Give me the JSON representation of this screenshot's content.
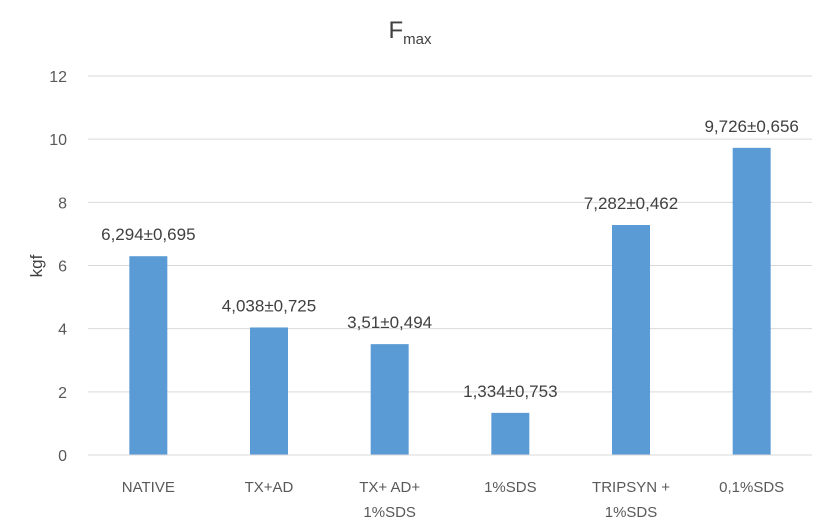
{
  "chart_data": {
    "type": "bar",
    "title_main": "F",
    "title_sub": "max",
    "xlabel": "",
    "ylabel": "kgf",
    "ylim": [
      0,
      12
    ],
    "yticks": [
      0,
      2,
      4,
      6,
      8,
      10,
      12
    ],
    "grid": true,
    "legend": "none",
    "bar_color": "#5b9bd5",
    "categories": [
      [
        "NATIVE"
      ],
      [
        "TX+AD"
      ],
      [
        "TX+ AD+",
        "1%SDS"
      ],
      [
        "1%SDS"
      ],
      [
        "TRIPSYN +",
        "1%SDS"
      ],
      [
        "0,1%SDS"
      ]
    ],
    "values": [
      6.294,
      4.038,
      3.51,
      1.334,
      7.282,
      9.726
    ],
    "data_labels": [
      "6,294±0,695",
      "4,038±0,725",
      "3,51±0,494",
      "1,334±0,753",
      "7,282±0,462",
      "9,726±0,656"
    ]
  }
}
